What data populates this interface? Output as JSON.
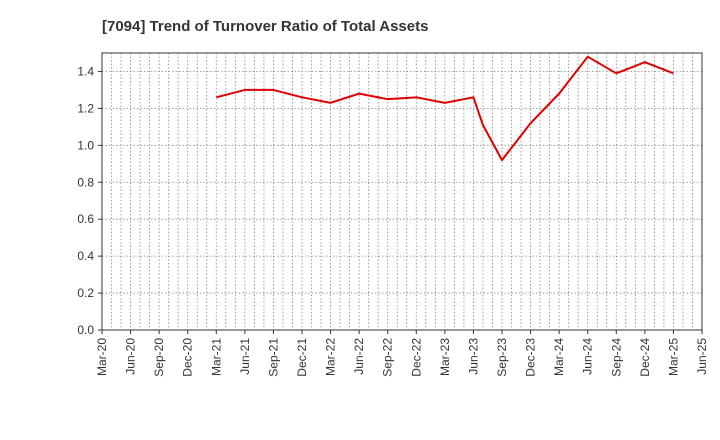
{
  "chart_data": {
    "type": "line",
    "title": "[7094]  Trend of Turnover Ratio of Total Assets",
    "xlabel": "",
    "ylabel": "",
    "x_ticks": [
      "Mar-20",
      "Jun-20",
      "Sep-20",
      "Dec-20",
      "Mar-21",
      "Jun-21",
      "Sep-21",
      "Dec-21",
      "Mar-22",
      "Jun-22",
      "Sep-22",
      "Dec-22",
      "Mar-23",
      "Jun-23",
      "Sep-23",
      "Dec-23",
      "Mar-24",
      "Jun-24",
      "Sep-24",
      "Dec-24",
      "Mar-25",
      "Jun-25"
    ],
    "y_ticks": [
      "0.0",
      "0.2",
      "0.4",
      "0.6",
      "0.8",
      "1.0",
      "1.2",
      "1.4"
    ],
    "ylim": [
      0,
      1.5
    ],
    "grid": true,
    "series": [
      {
        "color": "#e00000",
        "points": [
          {
            "x": "Mar-21",
            "y": 1.26
          },
          {
            "x": "Jun-21",
            "y": 1.3
          },
          {
            "x": "Sep-21",
            "y": 1.3
          },
          {
            "x": "Dec-21",
            "y": 1.26
          },
          {
            "x": "Mar-22",
            "y": 1.23
          },
          {
            "x": "Jun-22",
            "y": 1.28
          },
          {
            "x": "Sep-22",
            "y": 1.25
          },
          {
            "x": "Dec-22",
            "y": 1.26
          },
          {
            "x": "Mar-23",
            "y": 1.23
          },
          {
            "x": "Jun-23",
            "y": 1.26
          },
          {
            "x": "Jul-23",
            "y": 1.11
          },
          {
            "x": "Sep-23",
            "y": 0.92
          },
          {
            "x": "Dec-23",
            "y": 1.12
          },
          {
            "x": "Mar-24",
            "y": 1.28
          },
          {
            "x": "Jun-24",
            "y": 1.48
          },
          {
            "x": "Sep-24",
            "y": 1.39
          },
          {
            "x": "Dec-24",
            "y": 1.45
          },
          {
            "x": "Mar-25",
            "y": 1.39
          }
        ]
      }
    ]
  }
}
